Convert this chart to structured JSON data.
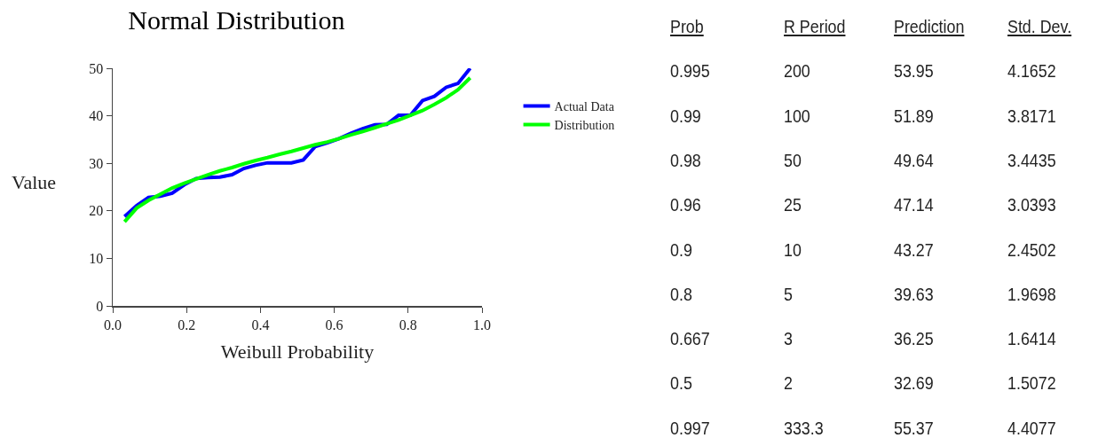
{
  "chart_data": [
    {
      "type": "line",
      "title": "Normal Distribution",
      "xlabel": "Weibull Probability",
      "ylabel": "Value",
      "xlim": [
        0,
        1
      ],
      "xticks": [
        {
          "value": 0,
          "label": "0.0"
        },
        {
          "value": 0.2,
          "label": "0.2"
        },
        {
          "value": 0.4,
          "label": "0.4"
        },
        {
          "value": 0.6,
          "label": "0.6"
        },
        {
          "value": 0.8,
          "label": "0.8"
        },
        {
          "value": 1,
          "label": "1.0"
        }
      ],
      "ylim": [
        0,
        50
      ],
      "yticks": [
        0,
        10,
        20,
        30,
        40,
        50
      ],
      "grid": false,
      "legend": "right",
      "marker": "none",
      "line_style": "solid",
      "x": [
        0.032,
        0.065,
        0.097,
        0.129,
        0.161,
        0.194,
        0.226,
        0.258,
        0.29,
        0.323,
        0.355,
        0.387,
        0.419,
        0.452,
        0.484,
        0.516,
        0.548,
        0.581,
        0.613,
        0.645,
        0.677,
        0.71,
        0.742,
        0.774,
        0.806,
        0.839,
        0.871,
        0.903,
        0.935,
        0.968
      ],
      "series": [
        {
          "name": "Actual Data",
          "color": "#0000ff",
          "values": [
            18.8,
            21.1,
            22.8,
            23.1,
            23.7,
            25.5,
            26.8,
            27.0,
            27.1,
            27.6,
            28.9,
            29.6,
            30.1,
            30.1,
            30.1,
            30.7,
            33.5,
            34.3,
            35.2,
            36.3,
            37.3,
            38.1,
            38.2,
            40.1,
            40.1,
            43.2,
            44.1,
            46.0,
            46.8,
            50.0
          ]
        },
        {
          "name": "Distribution",
          "color": "#00ff00",
          "values": [
            17.7,
            20.6,
            22.2,
            23.5,
            24.8,
            25.8,
            26.7,
            27.6,
            28.4,
            29.1,
            29.9,
            30.6,
            31.2,
            31.9,
            32.5,
            33.2,
            33.9,
            34.5,
            35.2,
            36.0,
            36.7,
            37.5,
            38.3,
            39.1,
            40.1,
            41.1,
            42.4,
            43.8,
            45.5,
            48.0
          ]
        }
      ]
    },
    {
      "type": "other",
      "categories": [
        "Prob",
        "R Period",
        "Prediction",
        "Std. Dev."
      ],
      "annotations": [
        "0.995",
        "200",
        "53.95",
        "4.1652",
        "0.99",
        "100",
        "51.89",
        "3.8171",
        "0.98",
        "50",
        "49.64",
        "3.4435",
        "0.96",
        "25",
        "47.14",
        "3.0393",
        "0.9",
        "10",
        "43.27",
        "2.4502",
        "0.8",
        "5",
        "39.63",
        "1.9698",
        "0.667",
        "3",
        "36.25",
        "1.6414",
        "0.5",
        "2",
        "32.69",
        "1.5072",
        "0.997",
        "333.3",
        "55.37",
        "4.4077"
      ]
    }
  ]
}
